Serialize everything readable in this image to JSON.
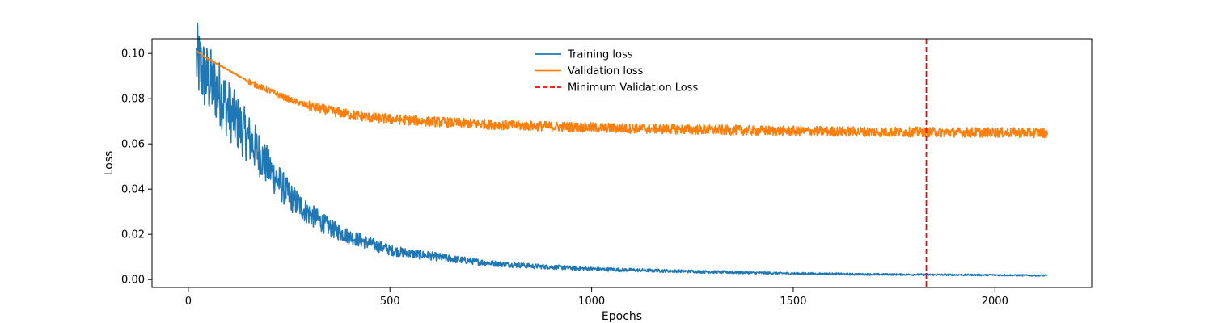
{
  "chart_data": {
    "type": "line",
    "title": "",
    "xlabel": "Epochs",
    "ylabel": "Loss",
    "xlim": [
      -90,
      2240
    ],
    "ylim": [
      -0.0035,
      0.1065
    ],
    "x_ticks": [
      0,
      500,
      1000,
      1500,
      2000
    ],
    "x_tick_labels": [
      "0",
      "500",
      "1000",
      "1500",
      "2000"
    ],
    "y_ticks": [
      0.0,
      0.02,
      0.04,
      0.06,
      0.08,
      0.1
    ],
    "y_tick_labels": [
      "0.00",
      "0.02",
      "0.04",
      "0.06",
      "0.08",
      "0.10"
    ],
    "grid": false,
    "legend_position": "top-center",
    "colors": {
      "training": "#1f77b4",
      "validation": "#ff7f0e",
      "min_val": "#ff0000"
    },
    "series": [
      {
        "name": "Training loss",
        "color": "#1f77b4",
        "x": [
          20,
          40,
          60,
          80,
          100,
          130,
          160,
          200,
          250,
          300,
          350,
          400,
          450,
          500,
          550,
          600,
          650,
          700,
          750,
          800,
          850,
          900,
          950,
          1000,
          1100,
          1200,
          1300,
          1400,
          1500,
          1600,
          1700,
          1800,
          1900,
          2000,
          2100,
          2130
        ],
        "y": [
          0.097,
          0.09,
          0.086,
          0.082,
          0.075,
          0.067,
          0.06,
          0.049,
          0.037,
          0.029,
          0.023,
          0.019,
          0.016,
          0.013,
          0.0115,
          0.0105,
          0.0092,
          0.0082,
          0.0072,
          0.0066,
          0.006,
          0.0056,
          0.0051,
          0.0047,
          0.0042,
          0.0038,
          0.0034,
          0.003,
          0.0027,
          0.0025,
          0.0023,
          0.0022,
          0.0021,
          0.002,
          0.0018,
          0.0018
        ],
        "noise": 0.18
      },
      {
        "name": "Validation loss",
        "color": "#ff7f0e",
        "x": [
          20,
          40,
          60,
          80,
          100,
          130,
          160,
          200,
          250,
          300,
          350,
          400,
          450,
          500,
          550,
          600,
          650,
          700,
          750,
          800,
          900,
          1000,
          1100,
          1200,
          1300,
          1400,
          1500,
          1600,
          1700,
          1800,
          1900,
          2000,
          2100,
          2130
        ],
        "y": [
          0.101,
          0.0985,
          0.0965,
          0.0945,
          0.0925,
          0.0895,
          0.0865,
          0.0835,
          0.0795,
          0.0765,
          0.0745,
          0.0728,
          0.0715,
          0.0708,
          0.0702,
          0.0697,
          0.0692,
          0.0688,
          0.0684,
          0.068,
          0.0675,
          0.067,
          0.0666,
          0.0663,
          0.066,
          0.0657,
          0.0655,
          0.0653,
          0.0651,
          0.065,
          0.0649,
          0.0648,
          0.0647,
          0.0646
        ],
        "noise_abs": 0.0022
      }
    ],
    "vlines": [
      {
        "name": "Minimum Validation Loss",
        "x": 1830,
        "color": "#ff0000",
        "style": "dashed"
      }
    ],
    "legend": [
      {
        "label": "Training loss",
        "color": "#1f77b4",
        "style": "solid"
      },
      {
        "label": "Validation loss",
        "color": "#ff7f0e",
        "style": "solid"
      },
      {
        "label": "Minimum Validation Loss",
        "color": "#ff0000",
        "style": "dashed"
      }
    ]
  }
}
